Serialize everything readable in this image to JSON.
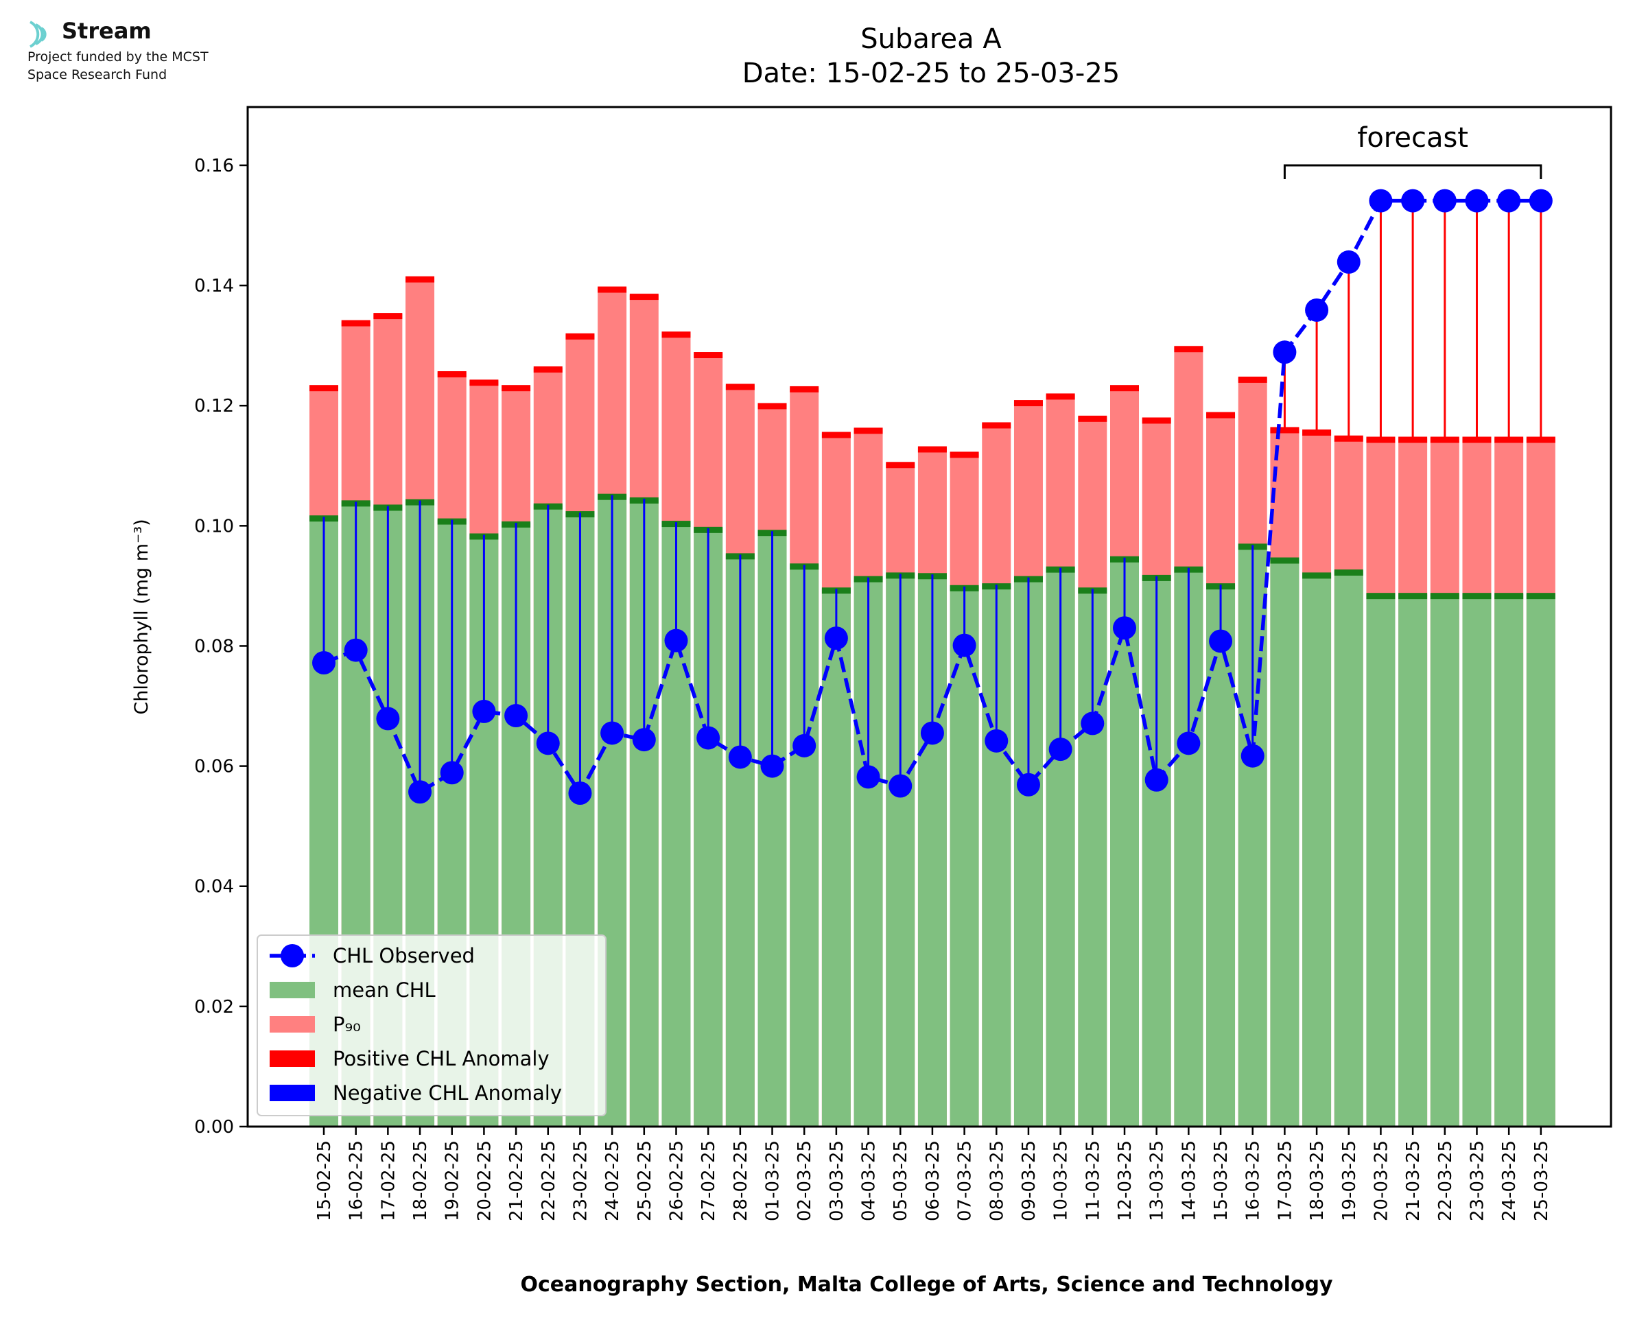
{
  "branding": {
    "logo_name": "Stream",
    "logo_icon": "stream-waves-icon",
    "line1": "Project funded by the MCST",
    "line2": "Space Research Fund"
  },
  "colors": {
    "mean_chl": "#80c080",
    "p90": "#ff8080",
    "positive_anomaly": "#ff0000",
    "negative_anomaly": "#0000ff",
    "mean_cap": "#1a7f1a",
    "logo": "#6cd0d0"
  },
  "chart_data": {
    "type": "bar",
    "title": "Subarea A",
    "subtitle": "Date: 15-02-25 to 25-03-25",
    "xlabel": "Oceanography Section, Malta College of Arts, Science and Technology",
    "ylabel": "Chlorophyll (mg m⁻³)",
    "ylim": [
      0,
      0.1697
    ],
    "yticks": [
      "0.00",
      "0.02",
      "0.04",
      "0.06",
      "0.08",
      "0.10",
      "0.12",
      "0.14",
      "0.16"
    ],
    "grid": false,
    "legend_position": "lower left",
    "annotation": "forecast",
    "forecast_range": [
      "17-03-25",
      "25-03-25"
    ],
    "categories": [
      "15-02-25",
      "16-02-25",
      "17-02-25",
      "18-02-25",
      "19-02-25",
      "20-02-25",
      "21-02-25",
      "22-02-25",
      "23-02-25",
      "24-02-25",
      "25-02-25",
      "26-02-25",
      "27-02-25",
      "28-02-25",
      "01-03-25",
      "02-03-25",
      "03-03-25",
      "04-03-25",
      "05-03-25",
      "06-03-25",
      "07-03-25",
      "08-03-25",
      "09-03-25",
      "10-03-25",
      "11-03-25",
      "12-03-25",
      "13-03-25",
      "14-03-25",
      "15-03-25",
      "16-03-25",
      "17-03-25",
      "18-03-25",
      "19-03-25",
      "20-03-25",
      "21-03-25",
      "22-03-25",
      "23-03-25",
      "24-03-25",
      "25-03-25"
    ],
    "series": [
      {
        "name": "mean CHL",
        "kind": "bar",
        "values": [
          0.1015,
          0.104,
          0.1033,
          0.1042,
          0.101,
          0.0985,
          0.1005,
          0.1035,
          0.1022,
          0.1051,
          0.1045,
          0.1006,
          0.0996,
          0.0952,
          0.0991,
          0.0935,
          0.0895,
          0.0914,
          0.092,
          0.0919,
          0.0899,
          0.0902,
          0.0914,
          0.093,
          0.0895,
          0.0947,
          0.0916,
          0.093,
          0.0902,
          0.0968,
          0.0945,
          0.092,
          0.0925,
          0.0886,
          0.0886,
          0.0886,
          0.0886,
          0.0886,
          0.0886
        ]
      },
      {
        "name": "P₉₀",
        "kind": "bar",
        "values": [
          0.1232,
          0.134,
          0.1352,
          0.1413,
          0.1255,
          0.1241,
          0.1232,
          0.1263,
          0.1318,
          0.1396,
          0.1384,
          0.1321,
          0.1287,
          0.1234,
          0.1202,
          0.123,
          0.1154,
          0.1161,
          0.1104,
          0.113,
          0.1121,
          0.117,
          0.1207,
          0.1218,
          0.1181,
          0.1232,
          0.1178,
          0.1297,
          0.1187,
          0.1246,
          0.1162,
          0.1158,
          0.1148,
          0.1146,
          0.1146,
          0.1146,
          0.1146,
          0.1146,
          0.1146
        ]
      },
      {
        "name": "CHL Observed",
        "kind": "line",
        "values": [
          0.0772,
          0.0793,
          0.0679,
          0.0557,
          0.0589,
          0.0691,
          0.0684,
          0.0638,
          0.0555,
          0.0655,
          0.0644,
          0.0809,
          0.0647,
          0.0615,
          0.06,
          0.0634,
          0.0813,
          0.0582,
          0.0567,
          0.0655,
          0.0801,
          0.0642,
          0.0569,
          0.0628,
          0.0671,
          0.083,
          0.0577,
          0.0638,
          0.0808,
          0.0617,
          0.1289,
          0.1359,
          0.1439,
          0.1541,
          0.1541,
          0.1541,
          0.1541,
          0.1541,
          0.1541
        ]
      }
    ],
    "legend": [
      "CHL Observed",
      "mean CHL",
      "P₉₀",
      "Positive CHL Anomaly",
      "Negative CHL Anomaly"
    ]
  }
}
